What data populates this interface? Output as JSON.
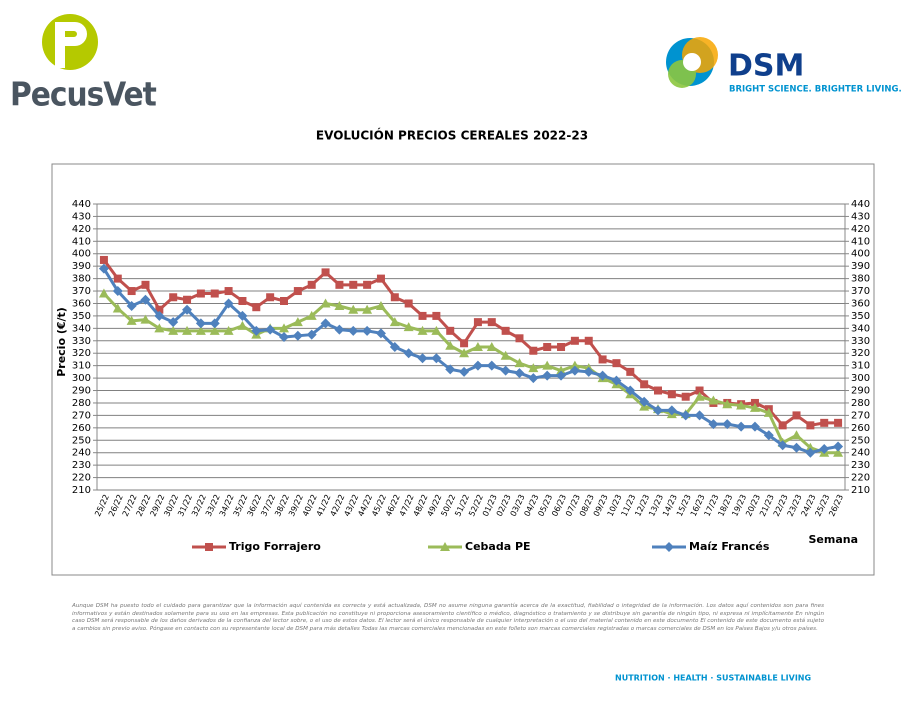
{
  "header": {
    "left_logo": "PecusVet",
    "right_logo": "DSM",
    "right_tagline": "BRIGHT SCIENCE. BRIGHTER LIVING."
  },
  "chart_data": {
    "type": "line",
    "title": "EVOLUCIÓN PRECIOS CEREALES 2022-23",
    "y_label": "Precio (€/t)",
    "x_label": "Semana",
    "categories": [
      "25/22",
      "26/22",
      "27/22",
      "28/22",
      "29/22",
      "30/22",
      "31/22",
      "32/22",
      "33/22",
      "34/22",
      "35/22",
      "36/22",
      "37/22",
      "38/22",
      "39/22",
      "40/22",
      "41/22",
      "42/22",
      "43/22",
      "44/22",
      "45/22",
      "46/22",
      "47/22",
      "48/22",
      "49/22",
      "50/22",
      "51/22",
      "52/22",
      "01/23",
      "02/23",
      "03/23",
      "04/23",
      "05/23",
      "06/23",
      "07/23",
      "08/23",
      "09/23",
      "10/23",
      "11/23",
      "12/23",
      "13/23",
      "14/23",
      "15/23",
      "16/23",
      "17/23",
      "18/23",
      "19/23",
      "20/23",
      "21/23",
      "22/23",
      "23/23",
      "24/23",
      "25/23",
      "26/23"
    ],
    "series": [
      {
        "name": "Trigo Forrajero",
        "color": "#c0504d",
        "marker": "square",
        "values": [
          395,
          380,
          370,
          375,
          355,
          365,
          363,
          368,
          368,
          370,
          362,
          357,
          365,
          362,
          370,
          375,
          385,
          375,
          375,
          375,
          380,
          365,
          360,
          350,
          350,
          338,
          328,
          345,
          345,
          338,
          332,
          322,
          325,
          325,
          330,
          330,
          315,
          312,
          305,
          295,
          290,
          287,
          285,
          290,
          280,
          280,
          279,
          280,
          275,
          262,
          270,
          262,
          264,
          264
        ]
      },
      {
        "name": "Cebada PE",
        "color": "#9bbb59",
        "marker": "triangle",
        "values": [
          368,
          356,
          346,
          347,
          340,
          338,
          338,
          338,
          338,
          338,
          342,
          335,
          340,
          340,
          345,
          350,
          360,
          358,
          355,
          355,
          358,
          345,
          341,
          338,
          338,
          326,
          320,
          325,
          325,
          318,
          312,
          308,
          310,
          306,
          310,
          308,
          300,
          295,
          287,
          277,
          275,
          271,
          271,
          285,
          282,
          279,
          278,
          276,
          272,
          248,
          254,
          244,
          240,
          240
        ]
      },
      {
        "name": "Maíz Francés",
        "color": "#4f81bd",
        "marker": "diamond",
        "values": [
          388,
          370,
          358,
          363,
          350,
          345,
          355,
          344,
          344,
          360,
          350,
          338,
          339,
          333,
          334,
          335,
          344,
          339,
          338,
          338,
          336,
          325,
          320,
          316,
          316,
          307,
          305,
          310,
          310,
          306,
          304,
          300,
          302,
          302,
          306,
          305,
          302,
          298,
          290,
          281,
          274,
          274,
          270,
          270,
          263,
          263,
          261,
          261,
          254,
          246,
          244,
          240,
          243,
          245
        ]
      }
    ],
    "ylim": [
      210,
      440
    ],
    "yticks": [
      210,
      220,
      230,
      240,
      250,
      260,
      270,
      280,
      290,
      300,
      310,
      320,
      330,
      340,
      350,
      360,
      370,
      380,
      390,
      400,
      410,
      420,
      430,
      440
    ],
    "y2lim": [
      210,
      440
    ],
    "y2ticks": [
      210,
      220,
      230,
      240,
      250,
      260,
      270,
      280,
      290,
      300,
      310,
      320,
      330,
      340,
      350,
      360,
      370,
      380,
      390,
      400,
      410,
      420,
      430,
      440
    ],
    "grid": true,
    "legend": "bottom"
  },
  "disclaimer": "Aunque DSM ha puesto todo el cuidado para garantizar que la información aquí contenida es correcta y está actualizada, DSM no asume ninguna garantía acerca de la exactitud, fiabilidad o integridad de la información. Los datos aquí contenidos son para fines informativos y están destinados solamente para su uso en las empresas. Esta publicación no constituye ni proporciona asesoramiento científico o médico, diagnóstico o tratamiento y se distribuye sin garantía de ningún tipo, ni expresa ni implícitamente En ningún caso DSM será responsable de los daños derivados de la confianza del lector sobre, o el uso de estos datos. El lector será el único responsable de cualquier interpretación o el uso del material contenido en este documento El contenido de este documento está sujeto a cambios sin previo aviso. Póngase en contacto con su representante local de DSM para más detalles Todas las marcas comerciales mencionadas en este folleto son marcas comerciales registradas o marcas comerciales de DSM en los Países Bajos y/u otros países.",
  "footer": "NUTRITION · HEALTH · SUSTAINABLE LIVING"
}
